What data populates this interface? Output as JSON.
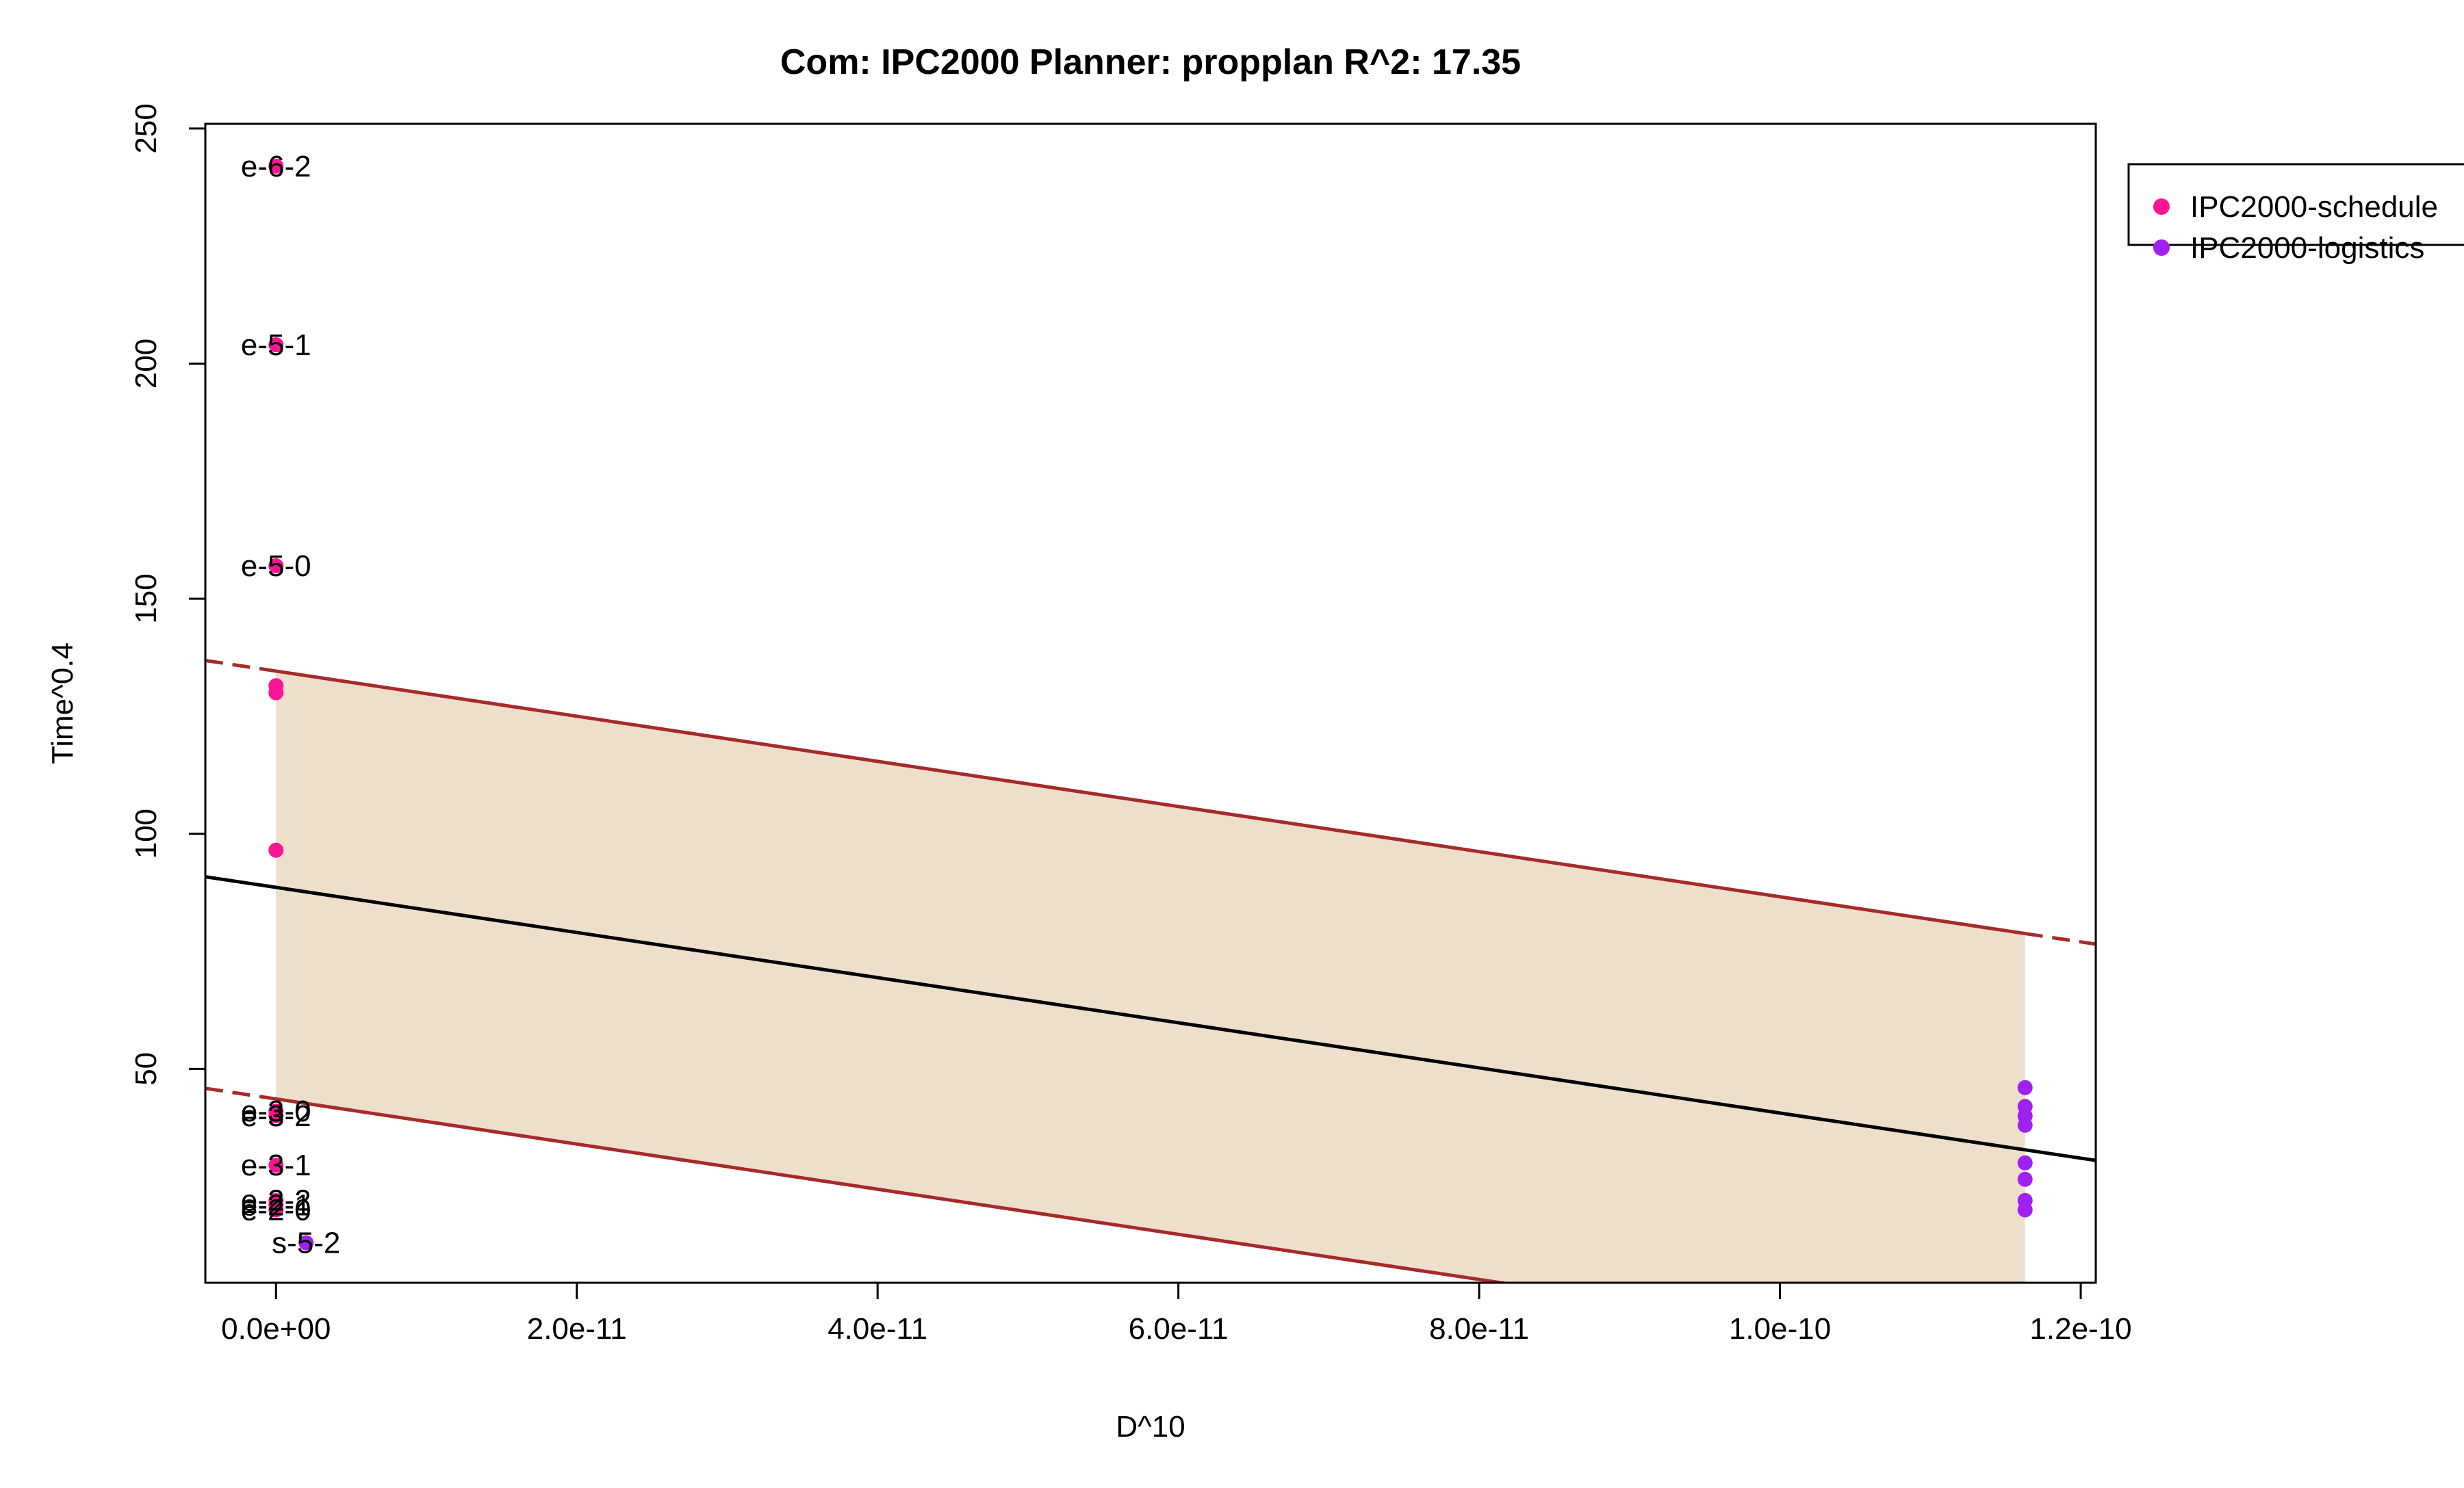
{
  "chart_data": {
    "type": "scatter",
    "title": "Com: IPC2000 Planner: propplan R^2: 17.35",
    "xlabel": "D^10",
    "ylabel": "Time^0.4",
    "xlim": [
      -4.7e-12,
      1.21e-10
    ],
    "ylim": [
      4.5,
      251
    ],
    "x_ticks": [
      {
        "value": 0,
        "label": "0.0e+00"
      },
      {
        "value": 2e-11,
        "label": "2.0e-11"
      },
      {
        "value": 4e-11,
        "label": "4.0e-11"
      },
      {
        "value": 6e-11,
        "label": "6.0e-11"
      },
      {
        "value": 8e-11,
        "label": "8.0e-11"
      },
      {
        "value": 1e-10,
        "label": "1.0e-10"
      },
      {
        "value": 1.2e-10,
        "label": "1.2e-10"
      }
    ],
    "y_ticks": [
      {
        "value": 50,
        "label": "50"
      },
      {
        "value": 100,
        "label": "100"
      },
      {
        "value": 150,
        "label": "150"
      },
      {
        "value": 200,
        "label": "200"
      },
      {
        "value": 250,
        "label": "250"
      }
    ],
    "grid": false,
    "legend_position": "top-right",
    "series": [
      {
        "name": "IPC2000-schedule",
        "color": "#ff1493",
        "points": [
          {
            "x": 0,
            "y": 242,
            "label": "e-6-2"
          },
          {
            "x": 0,
            "y": 204,
            "label": "e-5-1"
          },
          {
            "x": 0,
            "y": 157,
            "label": "e-5-0"
          },
          {
            "x": 0,
            "y": 131.5
          },
          {
            "x": 0,
            "y": 130
          },
          {
            "x": 0,
            "y": 96.5
          },
          {
            "x": 0,
            "y": 41,
            "label": "e-3-0"
          },
          {
            "x": 0,
            "y": 40,
            "label": "e-3-2"
          },
          {
            "x": 0,
            "y": 29.5,
            "label": "e-3-1"
          },
          {
            "x": 0,
            "y": 22,
            "label": "e-2-2"
          },
          {
            "x": 0,
            "y": 21,
            "label": "e-2-1"
          },
          {
            "x": 0,
            "y": 20,
            "label": "e-2-0"
          }
        ]
      },
      {
        "name": "IPC2000-logistics",
        "color": "#a020f0",
        "points": [
          {
            "x": 2e-12,
            "y": 13,
            "label": "s-5-2"
          },
          {
            "x": 1.163e-10,
            "y": 46
          },
          {
            "x": 1.163e-10,
            "y": 42
          },
          {
            "x": 1.163e-10,
            "y": 40
          },
          {
            "x": 1.163e-10,
            "y": 38
          },
          {
            "x": 1.163e-10,
            "y": 30
          },
          {
            "x": 1.163e-10,
            "y": 26.5
          },
          {
            "x": 1.163e-10,
            "y": 22
          },
          {
            "x": 1.163e-10,
            "y": 20
          }
        ]
      }
    ],
    "regression": {
      "color": "#000000",
      "y_at_x0": 88.6,
      "slope": -480000000000.0
    },
    "prediction_band": {
      "color": "#a52a2a",
      "fill": "#eedfcc",
      "x_range": [
        0,
        1.163e-10
      ],
      "upper": {
        "y_at_x0": 134.6,
        "slope": -480000000000.0
      },
      "lower": {
        "y_at_x0": 43.6,
        "slope": -480000000000.0
      }
    }
  }
}
